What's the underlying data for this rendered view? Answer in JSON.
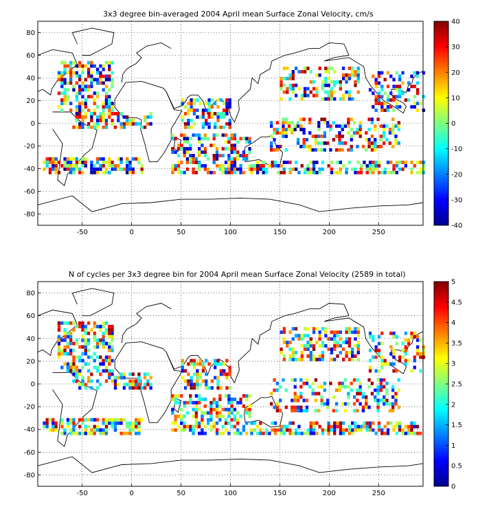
{
  "panels": [
    {
      "title": "3x3 degree bin-averaged 2004 April mean Surface Zonal Velocity, cm/s",
      "colorbar": {
        "min": -40,
        "max": 40,
        "ticks": [
          "40",
          "30",
          "20",
          "10",
          "0",
          "-10",
          "-20",
          "-30",
          "-40"
        ]
      }
    },
    {
      "title": "N of cycles per 3x3 degree bin for 2004 April mean Surface Zonal Velocity (2589 in total)",
      "colorbar": {
        "min": 0,
        "max": 5,
        "ticks": [
          "5",
          "4.5",
          "4",
          "3.5",
          "3",
          "2.5",
          "2",
          "1.5",
          "1",
          "0.5",
          "0"
        ]
      }
    }
  ],
  "axes": {
    "x_ticks": [
      "-50",
      "0",
      "50",
      "100",
      "150",
      "200",
      "250"
    ],
    "y_ticks": [
      "80",
      "60",
      "40",
      "20",
      "0",
      "-20",
      "-40",
      "-60",
      "-80"
    ],
    "x_range": [
      -95,
      295
    ],
    "y_range": [
      -90,
      90
    ]
  },
  "colormap": "jet"
}
